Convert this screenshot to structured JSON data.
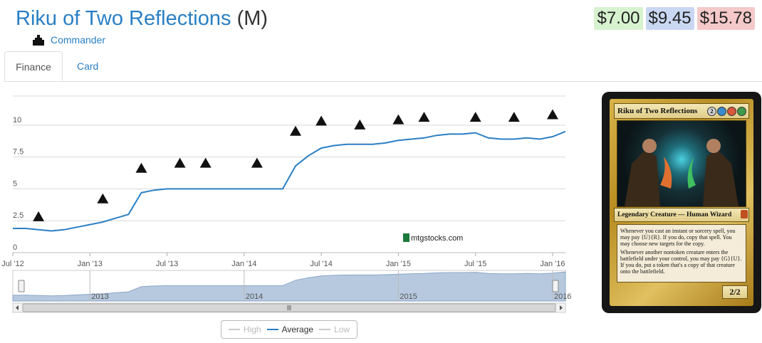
{
  "header": {
    "card_name": "Riku of Two Reflections",
    "rarity": "(M)",
    "set_name": "Commander"
  },
  "prices": {
    "low": "$7.00",
    "average": "$9.45",
    "high": "$15.78"
  },
  "tabs": [
    {
      "label": "Finance",
      "active": true
    },
    {
      "label": "Card",
      "active": false
    }
  ],
  "chart": {
    "y_ticks": [
      "0",
      "2.5",
      "5",
      "7.5",
      "10"
    ],
    "x_ticks": [
      "Jul '12",
      "Jan '13",
      "Jul '13",
      "Jan '14",
      "Jul '14",
      "Jan '15",
      "Jul '15",
      "Jan '16"
    ],
    "navigator_years": [
      "2013",
      "2014",
      "2015",
      "2016"
    ],
    "watermark": "mtgstocks.com",
    "colors": {
      "average": "#2a7fc4",
      "navigator_fill": "#b7c9de"
    }
  },
  "chart_data": {
    "type": "line",
    "title": "",
    "xlabel": "",
    "ylabel": "",
    "ylim": [
      0,
      12
    ],
    "series": [
      {
        "name": "Average",
        "x": [
          "2012-07",
          "2012-08",
          "2012-09",
          "2012-10",
          "2012-11",
          "2012-12",
          "2013-01",
          "2013-02",
          "2013-03",
          "2013-04",
          "2013-05",
          "2013-06",
          "2013-07",
          "2013-08",
          "2013-09",
          "2013-10",
          "2013-11",
          "2013-12",
          "2014-01",
          "2014-02",
          "2014-03",
          "2014-04",
          "2014-05",
          "2014-06",
          "2014-07",
          "2014-08",
          "2014-09",
          "2014-10",
          "2014-11",
          "2014-12",
          "2015-01",
          "2015-02",
          "2015-03",
          "2015-04",
          "2015-05",
          "2015-06",
          "2015-07",
          "2015-08",
          "2015-09",
          "2015-10",
          "2015-11",
          "2015-12",
          "2016-01",
          "2016-02"
        ],
        "values": [
          1.9,
          1.9,
          1.8,
          1.7,
          1.8,
          2.0,
          2.2,
          2.4,
          2.7,
          3.0,
          4.7,
          4.9,
          5.0,
          5.0,
          5.0,
          5.0,
          5.0,
          5.0,
          5.0,
          5.0,
          5.0,
          5.0,
          6.8,
          7.6,
          8.2,
          8.4,
          8.5,
          8.5,
          8.5,
          8.6,
          8.8,
          8.9,
          9.0,
          9.2,
          9.3,
          9.3,
          9.4,
          9.0,
          8.9,
          8.9,
          9.0,
          8.9,
          9.1,
          9.5
        ]
      }
    ],
    "legend": [
      "High",
      "Average",
      "Low"
    ],
    "grid": true
  },
  "card_image": {
    "name": "Riku of Two Reflections",
    "type_line": "Legendary Creature — Human Wizard",
    "rules": [
      "Whenever you cast an instant or sorcery spell, you may pay {U}{R}. If you do, copy that spell. You may choose new targets for the copy.",
      "Whenever another nontoken creature enters the battlefield under your control, you may pay {G}{U}. If you do, put a token that's a copy of that creature onto the battlefield."
    ],
    "power_toughness": "2/2",
    "mana_cost": [
      "2",
      "U",
      "R",
      "G"
    ]
  },
  "legend": {
    "high": "High",
    "average": "Average",
    "low": "Low"
  }
}
